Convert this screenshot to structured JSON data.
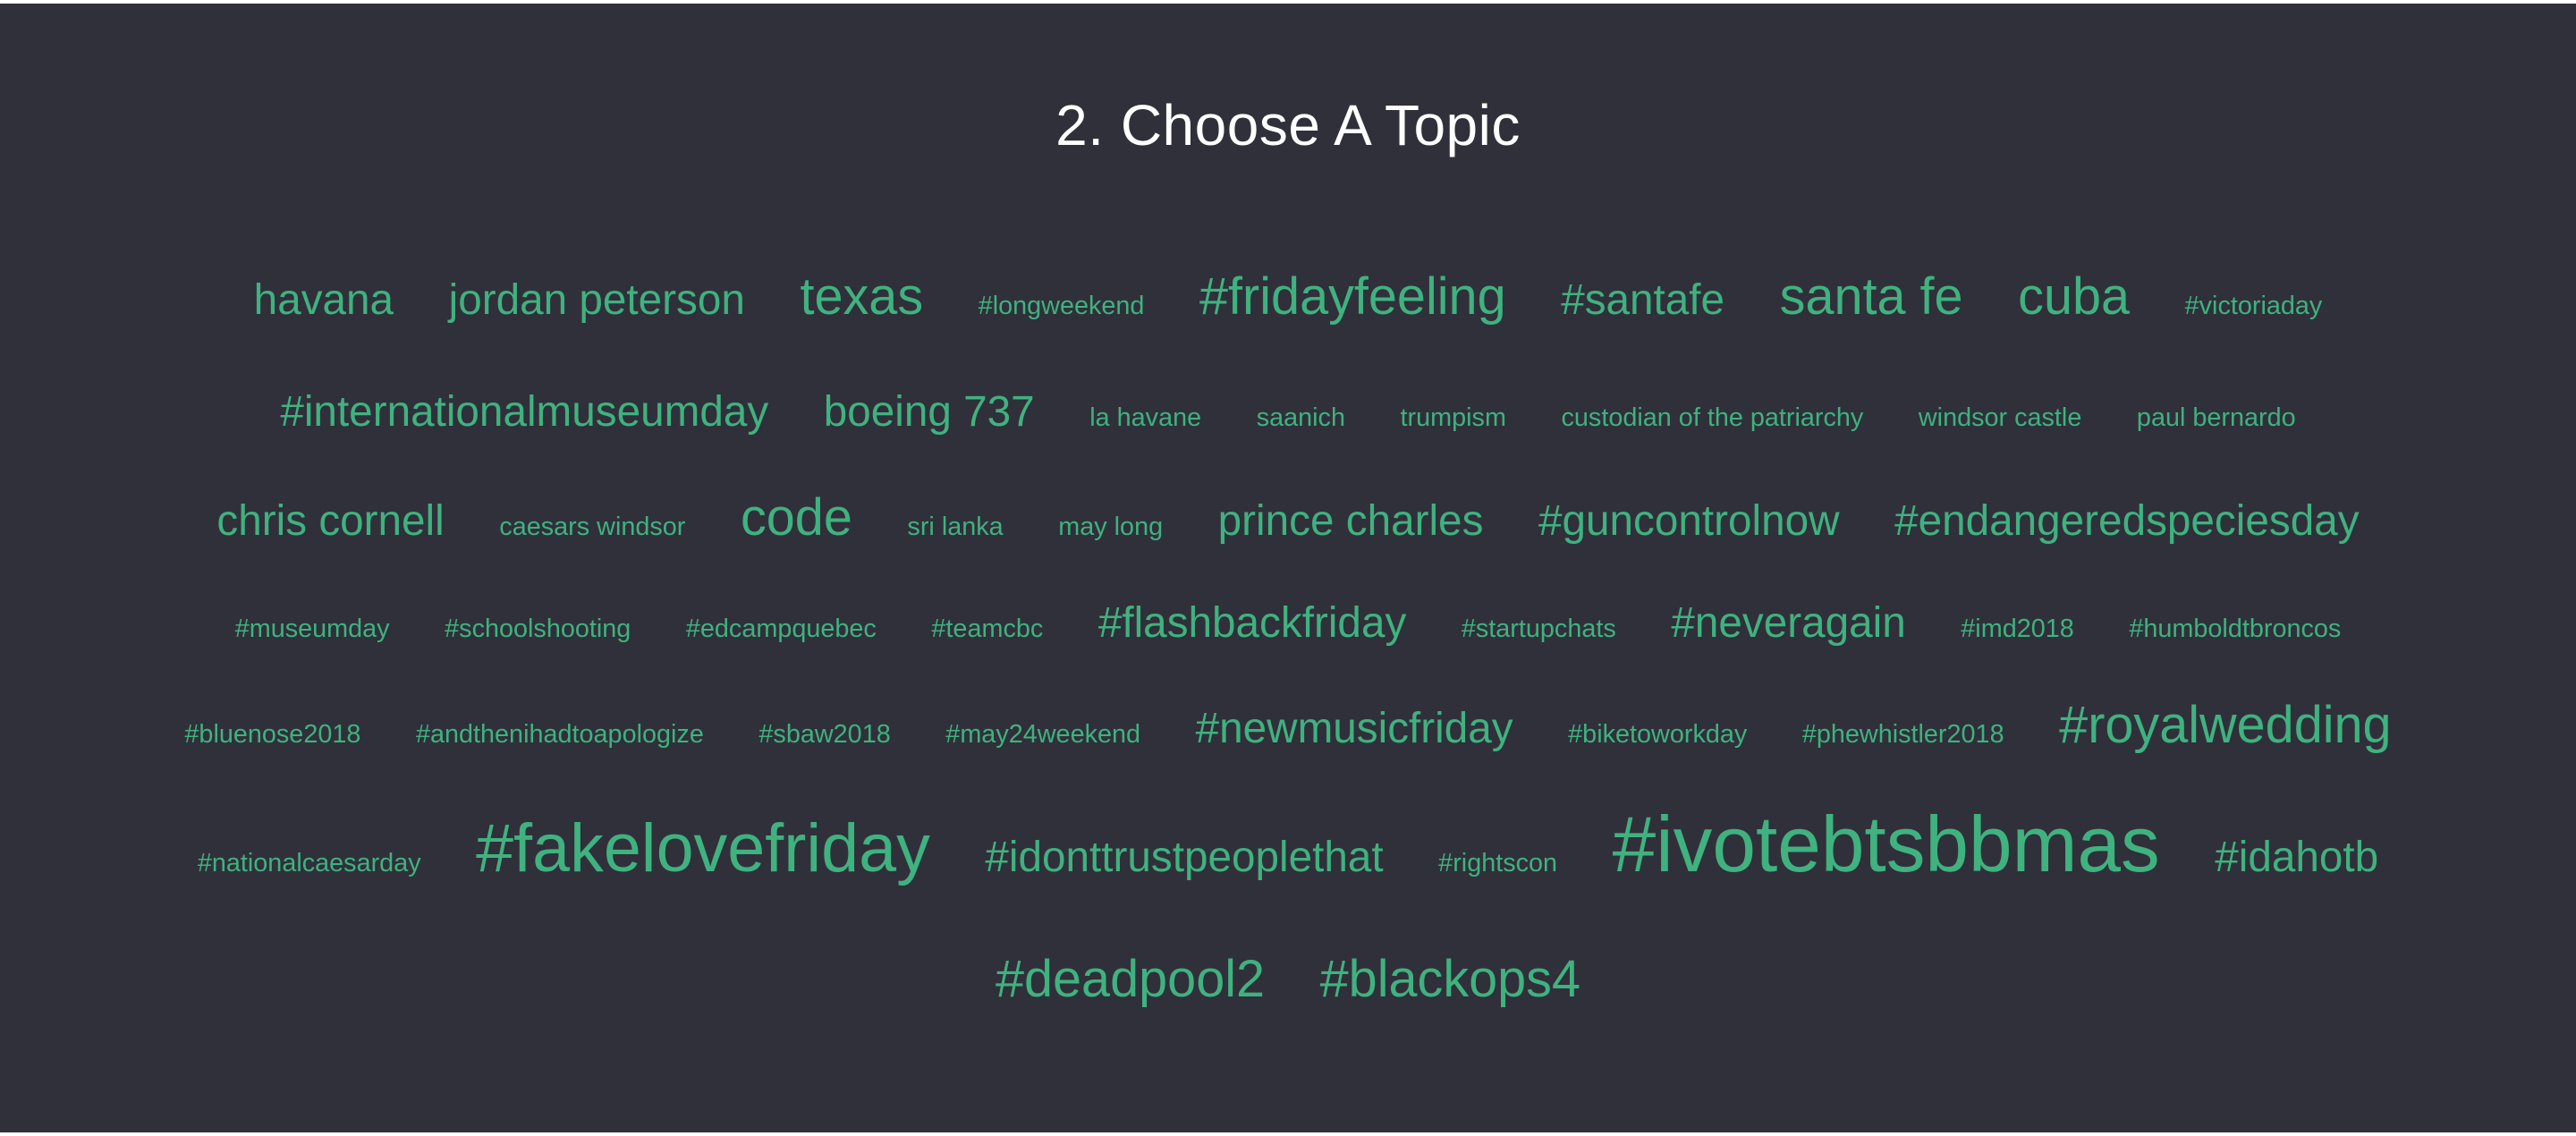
{
  "header": {
    "title": "2. Choose A Topic"
  },
  "topic_cloud": {
    "color": "#3fb27f",
    "rows": [
      [
        {
          "label": "havana",
          "weight": 3
        },
        {
          "label": "jordan peterson",
          "weight": 3
        },
        {
          "label": "texas",
          "weight": 4
        },
        {
          "label": "#longweekend",
          "weight": 1
        },
        {
          "label": "#fridayfeeling",
          "weight": 4
        },
        {
          "label": "#santafe",
          "weight": 3
        },
        {
          "label": "santa fe",
          "weight": 4
        },
        {
          "label": "cuba",
          "weight": 4
        },
        {
          "label": "#victoriaday",
          "weight": 1
        }
      ],
      [
        {
          "label": "#internationalmuseumday",
          "weight": 3
        },
        {
          "label": "boeing 737",
          "weight": 3
        },
        {
          "label": "la havane",
          "weight": 1
        },
        {
          "label": "saanich",
          "weight": 1
        },
        {
          "label": "trumpism",
          "weight": 1
        },
        {
          "label": "custodian of the patriarchy",
          "weight": 1
        },
        {
          "label": "windsor castle",
          "weight": 1
        },
        {
          "label": "paul bernardo",
          "weight": 1
        }
      ],
      [
        {
          "label": "chris cornell",
          "weight": 3
        },
        {
          "label": "caesars windsor",
          "weight": 1
        },
        {
          "label": "code",
          "weight": 4
        },
        {
          "label": "sri lanka",
          "weight": 1
        },
        {
          "label": "may long",
          "weight": 1
        },
        {
          "label": "prince charles",
          "weight": 3
        },
        {
          "label": "#guncontrolnow",
          "weight": 3
        },
        {
          "label": "#endangeredspeciesday",
          "weight": 3
        }
      ],
      [
        {
          "label": "#museumday",
          "weight": 1
        },
        {
          "label": "#schoolshooting",
          "weight": 1
        },
        {
          "label": "#edcampquebec",
          "weight": 1
        },
        {
          "label": "#teamcbc",
          "weight": 1
        },
        {
          "label": "#flashbackfriday",
          "weight": 3
        },
        {
          "label": "#startupchats",
          "weight": 1
        },
        {
          "label": "#neveragain",
          "weight": 3
        },
        {
          "label": "#imd2018",
          "weight": 1
        },
        {
          "label": "#humboldtbroncos",
          "weight": 1
        }
      ],
      [
        {
          "label": "#bluenose2018",
          "weight": 1
        },
        {
          "label": "#andthenihadtoapologize",
          "weight": 1
        },
        {
          "label": "#sbaw2018",
          "weight": 1
        },
        {
          "label": "#may24weekend",
          "weight": 1
        },
        {
          "label": "#newmusicfriday",
          "weight": 3
        },
        {
          "label": "#biketoworkday",
          "weight": 1
        },
        {
          "label": "#phewhistler2018",
          "weight": 1
        },
        {
          "label": "#royalwedding",
          "weight": 4
        }
      ],
      [
        {
          "label": "#nationalcaesarday",
          "weight": 1
        },
        {
          "label": "#fakelovefriday",
          "weight": 5
        },
        {
          "label": "#idonttrustpeoplethat",
          "weight": 3
        },
        {
          "label": "#rightscon",
          "weight": 1
        },
        {
          "label": "#ivotebtsbbmas",
          "weight": 6
        },
        {
          "label": "#idahotb",
          "weight": 3
        }
      ],
      [
        {
          "label": "#deadpool2",
          "weight": 4
        },
        {
          "label": "#blackops4",
          "weight": 4
        }
      ]
    ]
  }
}
